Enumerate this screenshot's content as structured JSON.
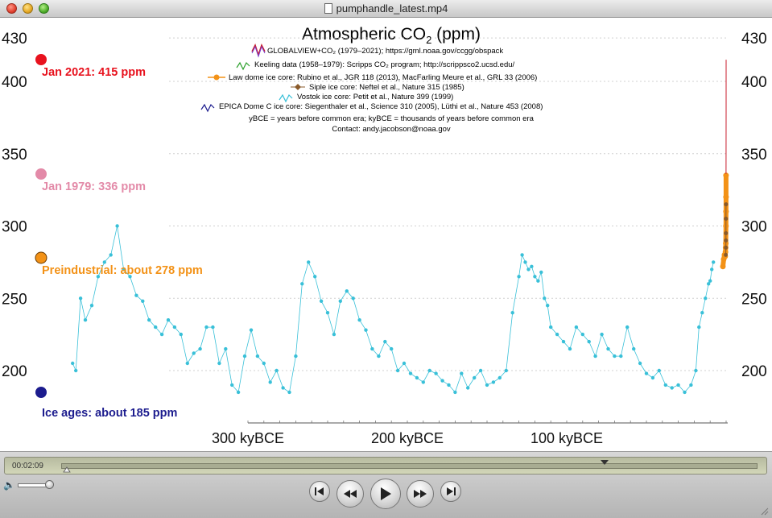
{
  "window": {
    "title": "pumphandle_latest.mp4"
  },
  "chart": {
    "title": "Atmospheric CO",
    "title_sub": "2",
    "title_unit": " (ppm)",
    "y_ticks": [
      "430",
      "400",
      "350",
      "300",
      "250",
      "200"
    ],
    "x_ticks": [
      "300 kyBCE",
      "200 kyBCE",
      "100 kyBCE"
    ],
    "legend": [
      "GLOBALVIEW+CO₂ (1979–2021); https://gml.noaa.gov/ccgg/obspack",
      "Keeling data (1958–1979): Scripps CO₂ program; http://scrippsco2.ucsd.edu/",
      "Law dome ice core:  Rubino et al., JGR 118 (2013), MacFarling Meure et al., GRL 33 (2006)",
      "Siple ice core:  Neftel et al., Nature 315 (1985)",
      "Vostok ice core:  Petit et al., Nature 399 (1999)",
      "EPICA Dome C ice core:  Siegenthaler et al., Science 310 (2005), Lüthi et al., Nature 453 (2008)",
      "yBCE = years before common era; kyBCE = thousands of years before common era",
      "Contact: andy.jacobson@noaa.gov"
    ],
    "markers": [
      {
        "label": "Jan 2021: 415 ppm",
        "color": "#e8121e"
      },
      {
        "label": "Jan 1979: 336 ppm",
        "color": "#e38aa8"
      },
      {
        "label": "Preindustrial: about 278 ppm",
        "color": "#f39217"
      },
      {
        "label": "Ice ages: about 185 ppm",
        "color": "#1c1c8e"
      }
    ],
    "colors": {
      "vostok": "#39c0d8",
      "modern": "#c81e2e",
      "law_dome": "#f39217",
      "siple": "#8a5a2a"
    }
  },
  "chart_data": {
    "type": "line",
    "title": "Atmospheric CO₂ (ppm)",
    "xlabel": "",
    "ylabel": "",
    "x_unit": "kyBCE",
    "ylim": [
      175,
      432
    ],
    "xlim": [
      410,
      0
    ],
    "x_tick_values": [
      300,
      200,
      100
    ],
    "y_tick_values": [
      430,
      400,
      350,
      300,
      250,
      200
    ],
    "series": [
      {
        "name": "Vostok ice core:  Petit et al., Nature 399 (1999)",
        "x": [
          410,
          408,
          405,
          402,
          398,
          394,
          390,
          386,
          382,
          378,
          374,
          370,
          366,
          362,
          358,
          354,
          350,
          346,
          342,
          338,
          334,
          330,
          326,
          322,
          318,
          314,
          310,
          306,
          302,
          298,
          294,
          290,
          286,
          282,
          278,
          274,
          270,
          266,
          262,
          258,
          254,
          250,
          246,
          242,
          238,
          234,
          230,
          226,
          222,
          218,
          214,
          210,
          206,
          202,
          198,
          194,
          190,
          186,
          182,
          178,
          174,
          170,
          166,
          162,
          158,
          154,
          150,
          146,
          142,
          138,
          134,
          130,
          128,
          126,
          124,
          122,
          120,
          118,
          116,
          114,
          112,
          110,
          106,
          102,
          98,
          94,
          90,
          86,
          82,
          78,
          74,
          70,
          66,
          62,
          58,
          54,
          50,
          46,
          42,
          38,
          34,
          30,
          26,
          22,
          19,
          17,
          15,
          13,
          11,
          10,
          9,
          8
        ],
        "y": [
          205,
          200,
          250,
          235,
          245,
          265,
          275,
          280,
          300,
          270,
          265,
          252,
          248,
          235,
          230,
          225,
          235,
          230,
          225,
          205,
          212,
          215,
          230,
          230,
          205,
          215,
          190,
          185,
          210,
          228,
          210,
          205,
          192,
          200,
          188,
          185,
          210,
          260,
          275,
          265,
          248,
          240,
          225,
          248,
          255,
          250,
          235,
          228,
          215,
          210,
          220,
          215,
          200,
          205,
          198,
          195,
          192,
          200,
          198,
          193,
          190,
          185,
          198,
          188,
          195,
          200,
          190,
          192,
          195,
          200,
          240,
          265,
          280,
          275,
          270,
          272,
          265,
          262,
          268,
          250,
          245,
          230,
          225,
          220,
          215,
          230,
          225,
          220,
          210,
          225,
          215,
          210,
          210,
          230,
          215,
          205,
          198,
          195,
          200,
          190,
          188,
          190,
          185,
          190,
          200,
          230,
          240,
          250,
          260,
          262,
          270,
          275
        ]
      },
      {
        "name": "Law dome ice core:  Rubino et al., JGR 118 (2013), MacFarling Meure et al., GRL 33 (2006)",
        "x": [
          2.0,
          1.5,
          1.0,
          0.6,
          0.4,
          0.3,
          0.2,
          0.1,
          0.07,
          0.05,
          0.03
        ],
        "y": [
          272,
          277,
          280,
          279,
          282,
          285,
          288,
          300,
          310,
          320,
          335
        ]
      },
      {
        "name": "Siple ice core:  Neftel et al., Nature 315 (1985)",
        "x": [
          0.2,
          0.15,
          0.12,
          0.1,
          0.08,
          0.06
        ],
        "y": [
          280,
          285,
          290,
          295,
          305,
          315
        ]
      },
      {
        "name": "GLOBALVIEW+CO₂ (1979–2021); https://gml.noaa.gov/ccgg/obspack",
        "x": [
          0.042,
          0.02,
          0.0
        ],
        "y": [
          336,
          380,
          415
        ]
      }
    ]
  },
  "player": {
    "current_time": "00:02:09"
  }
}
